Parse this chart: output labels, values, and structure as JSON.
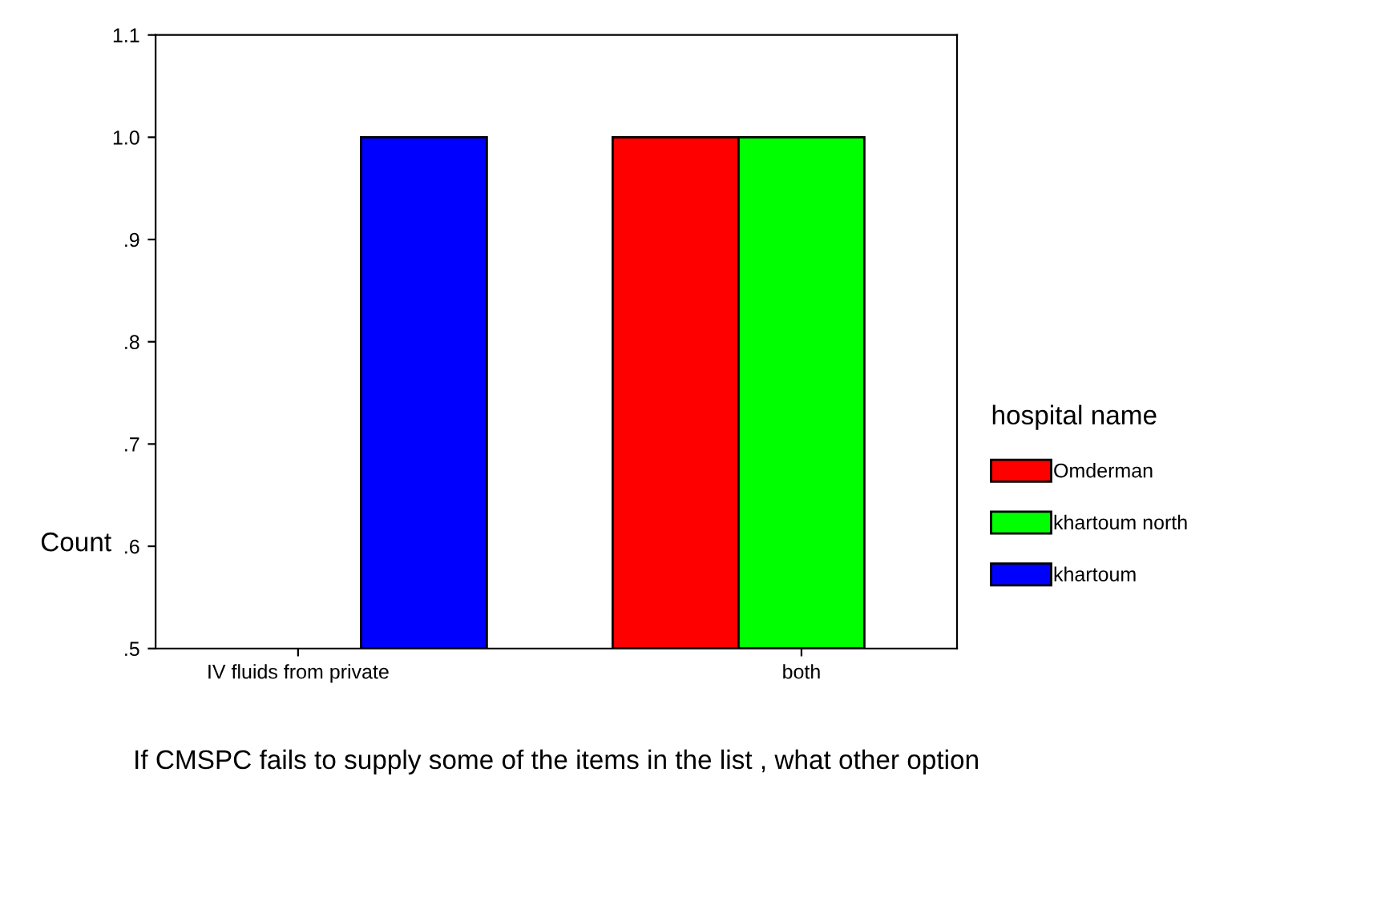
{
  "chart_data": {
    "type": "bar",
    "categories": [
      "IV fluids from private",
      "both"
    ],
    "series": [
      {
        "name": "Omderman",
        "color": "#ff0000",
        "values": [
          null,
          1.0
        ]
      },
      {
        "name": "khartoum north",
        "color": "#00ff00",
        "values": [
          null,
          1.0
        ]
      },
      {
        "name": "khartoum",
        "color": "#0000ff",
        "values": [
          1.0,
          null
        ]
      }
    ],
    "xlabel": "If CMSPC fails to supply some of the items in the list , what other option",
    "ylabel": "Count",
    "legend_title": "hospital name",
    "legend": "right",
    "ylim": [
      0.5,
      1.1
    ],
    "yticks": [
      {
        "value": 0.5,
        "label": ".5"
      },
      {
        "value": 0.6,
        "label": ".6"
      },
      {
        "value": 0.7,
        "label": ".7"
      },
      {
        "value": 0.8,
        "label": ".8"
      },
      {
        "value": 0.9,
        "label": ".9"
      },
      {
        "value": 1.0,
        "label": "1.0"
      },
      {
        "value": 1.1,
        "label": "1.1"
      }
    ],
    "grid": false
  }
}
